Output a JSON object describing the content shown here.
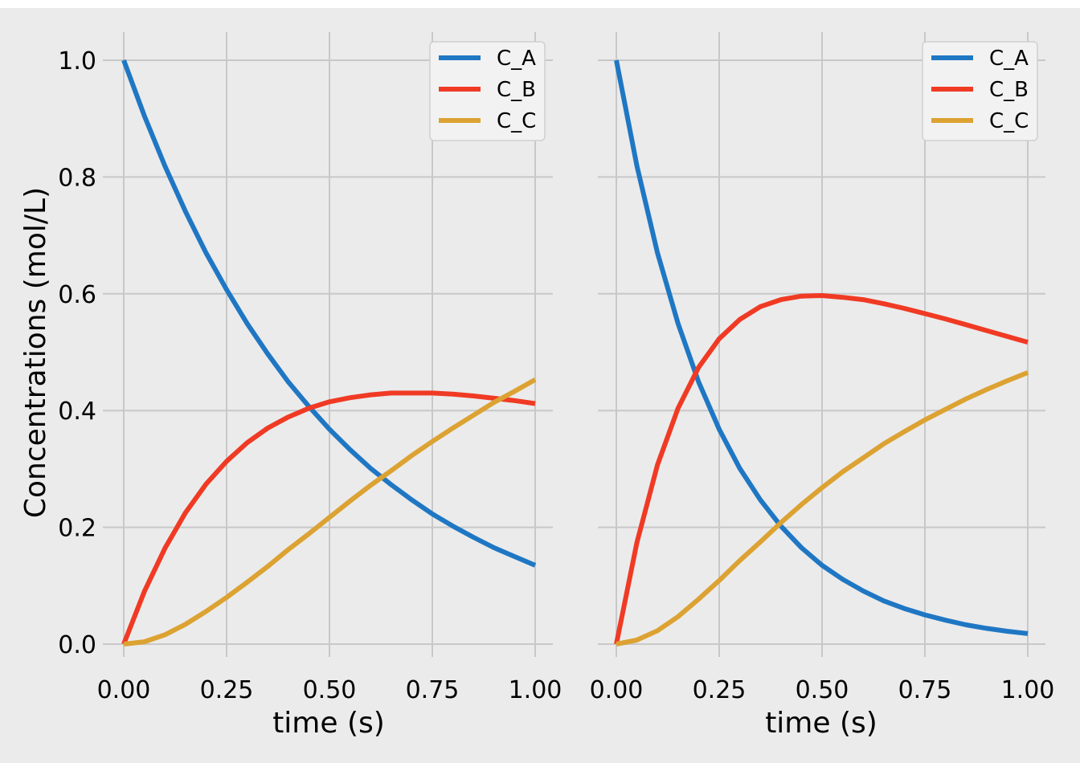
{
  "figure": {
    "background": "#ebebeb",
    "outer_background": "#ffffff",
    "grid_color": "#c8c8c8",
    "legend_background": "#f2f2f2",
    "legend_border": "#d0d0d0"
  },
  "chart_data": [
    {
      "type": "line",
      "xlabel": "time (s)",
      "ylabel": "Concentrations (mol/L)",
      "xlim": [
        0,
        1
      ],
      "ylim": [
        -0.04,
        1.05
      ],
      "xticks": [
        "0.00",
        "0.25",
        "0.50",
        "0.75",
        "1.00"
      ],
      "yticks": [
        "0.0",
        "0.2",
        "0.4",
        "0.6",
        "0.8",
        "1.0"
      ],
      "grid": true,
      "legend_position": "top-right",
      "x": [
        0,
        0.05,
        0.1,
        0.15,
        0.2,
        0.25,
        0.3,
        0.35,
        0.4,
        0.45,
        0.5,
        0.55,
        0.6,
        0.65,
        0.7,
        0.75,
        0.8,
        0.85,
        0.9,
        0.95,
        1.0
      ],
      "series": [
        {
          "name": "C_A",
          "color": "#1f77c4",
          "values": [
            1.0,
            0.905,
            0.819,
            0.741,
            0.67,
            0.607,
            0.549,
            0.497,
            0.449,
            0.407,
            0.368,
            0.333,
            0.301,
            0.273,
            0.247,
            0.223,
            0.202,
            0.183,
            0.165,
            0.15,
            0.135
          ]
        },
        {
          "name": "C_B",
          "color": "#f03a24",
          "values": [
            0.0,
            0.09,
            0.164,
            0.225,
            0.274,
            0.313,
            0.345,
            0.37,
            0.389,
            0.404,
            0.415,
            0.422,
            0.427,
            0.43,
            0.43,
            0.43,
            0.428,
            0.425,
            0.421,
            0.417,
            0.412
          ]
        },
        {
          "name": "C_C",
          "color": "#dca232",
          "values": [
            0.0,
            0.004,
            0.016,
            0.034,
            0.056,
            0.08,
            0.106,
            0.133,
            0.162,
            0.189,
            0.217,
            0.245,
            0.272,
            0.297,
            0.323,
            0.347,
            0.37,
            0.392,
            0.414,
            0.433,
            0.453
          ]
        }
      ]
    },
    {
      "type": "line",
      "xlabel": "time (s)",
      "ylabel": "",
      "xlim": [
        0,
        1
      ],
      "ylim": [
        -0.04,
        1.05
      ],
      "xticks": [
        "0.00",
        "0.25",
        "0.50",
        "0.75",
        "1.00"
      ],
      "yticks": [],
      "grid": true,
      "legend_position": "top-right",
      "x": [
        0,
        0.05,
        0.1,
        0.15,
        0.2,
        0.25,
        0.3,
        0.35,
        0.4,
        0.45,
        0.5,
        0.55,
        0.6,
        0.65,
        0.7,
        0.75,
        0.8,
        0.85,
        0.9,
        0.95,
        1.0
      ],
      "series": [
        {
          "name": "C_A",
          "color": "#1f77c4",
          "values": [
            1.0,
            0.819,
            0.67,
            0.549,
            0.449,
            0.368,
            0.301,
            0.247,
            0.202,
            0.165,
            0.135,
            0.111,
            0.091,
            0.074,
            0.061,
            0.05,
            0.041,
            0.033,
            0.027,
            0.022,
            0.018
          ]
        },
        {
          "name": "C_B",
          "color": "#f03a24",
          "values": [
            0.0,
            0.174,
            0.307,
            0.404,
            0.474,
            0.523,
            0.556,
            0.578,
            0.59,
            0.596,
            0.597,
            0.594,
            0.59,
            0.583,
            0.575,
            0.566,
            0.557,
            0.547,
            0.537,
            0.527,
            0.517
          ]
        },
        {
          "name": "C_C",
          "color": "#dca232",
          "values": [
            0.0,
            0.007,
            0.023,
            0.047,
            0.077,
            0.109,
            0.143,
            0.175,
            0.208,
            0.239,
            0.268,
            0.295,
            0.319,
            0.343,
            0.364,
            0.384,
            0.402,
            0.42,
            0.436,
            0.451,
            0.465
          ]
        }
      ]
    }
  ]
}
